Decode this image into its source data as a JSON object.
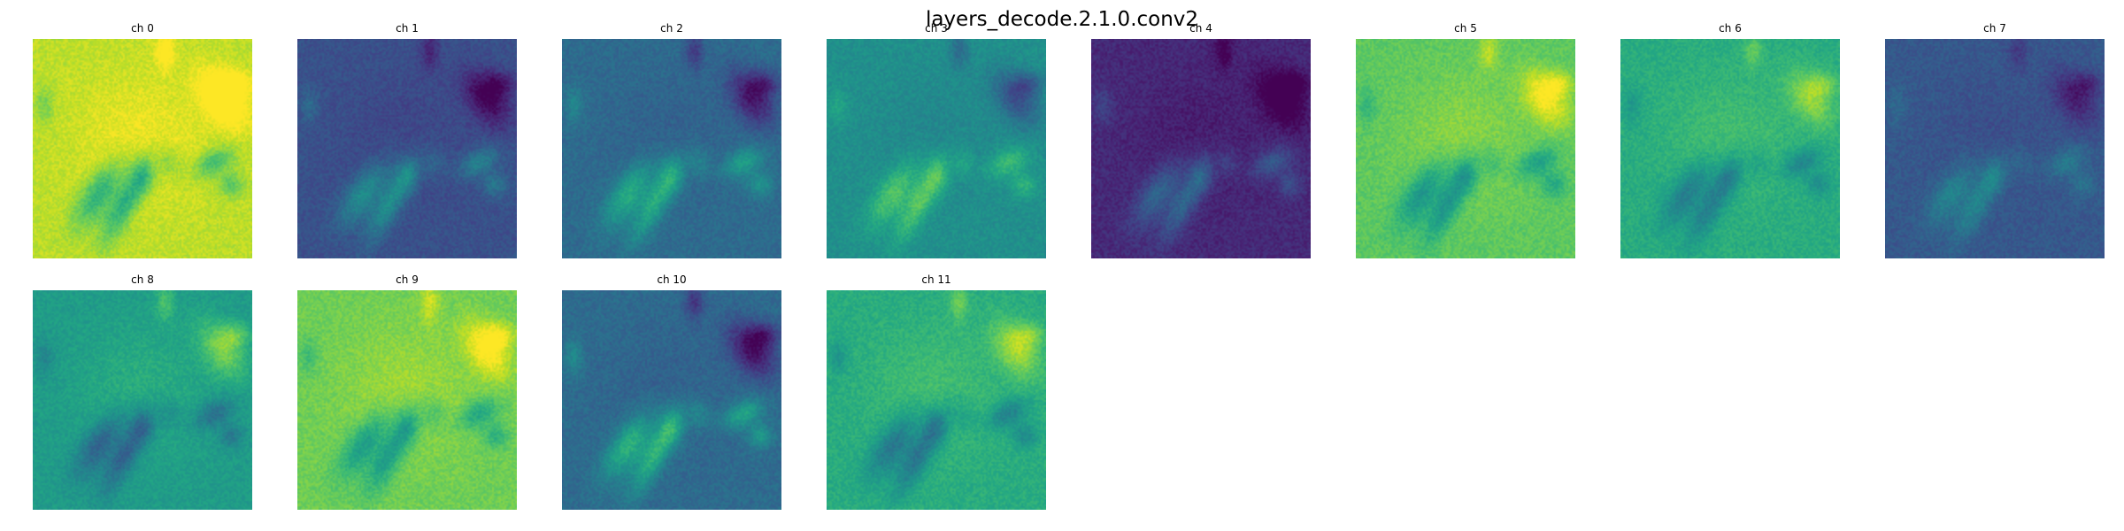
{
  "chart_data": {
    "type": "heatmap",
    "title": "layers_decode.2.1.0.conv2",
    "colormap": "viridis",
    "axes_visible": false,
    "grid": false,
    "panels": [
      {
        "label": "ch 0",
        "base_level": 0.9,
        "feature_contrast": 0.45,
        "feature_sign": -1
      },
      {
        "label": "ch 1",
        "base_level": 0.25,
        "feature_contrast": 0.4,
        "feature_sign": 1
      },
      {
        "label": "ch 2",
        "base_level": 0.35,
        "feature_contrast": 0.45,
        "feature_sign": 1
      },
      {
        "label": "ch 3",
        "base_level": 0.5,
        "feature_contrast": 0.4,
        "feature_sign": 1
      },
      {
        "label": "ch 4",
        "base_level": 0.12,
        "feature_contrast": 0.35,
        "feature_sign": 1
      },
      {
        "label": "ch 5",
        "base_level": 0.75,
        "feature_contrast": 0.4,
        "feature_sign": -1
      },
      {
        "label": "ch 6",
        "base_level": 0.62,
        "feature_contrast": 0.35,
        "feature_sign": -1
      },
      {
        "label": "ch 7",
        "base_level": 0.28,
        "feature_contrast": 0.3,
        "feature_sign": 1
      },
      {
        "label": "ch 8",
        "base_level": 0.55,
        "feature_contrast": 0.4,
        "feature_sign": -1
      },
      {
        "label": "ch 9",
        "base_level": 0.78,
        "feature_contrast": 0.4,
        "feature_sign": -1
      },
      {
        "label": "ch 10",
        "base_level": 0.35,
        "feature_contrast": 0.5,
        "feature_sign": 1
      },
      {
        "label": "ch 11",
        "base_level": 0.62,
        "feature_contrast": 0.4,
        "feature_sign": -1
      }
    ]
  }
}
